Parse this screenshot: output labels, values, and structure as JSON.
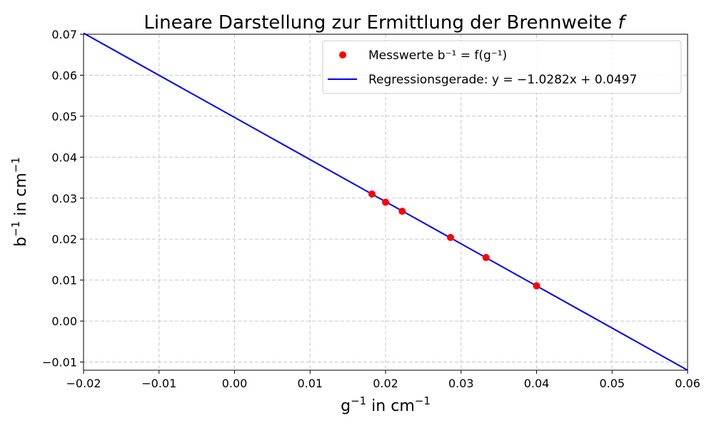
{
  "chart_data": {
    "type": "scatter",
    "title": "Lineare Darstellung zur Ermittlung der Brennweite",
    "title_symbol": "f",
    "xlabel_base": "g",
    "xlabel_sup": "−1",
    "xlabel_rest": " in cm",
    "xlabel_unit_sup": "−1",
    "ylabel_base": "b",
    "ylabel_sup": "−1",
    "ylabel_rest": " in cm",
    "ylabel_unit_sup": "−1",
    "xlim": [
      -0.02,
      0.06
    ],
    "ylim": [
      -0.012,
      0.07
    ],
    "x_ticks": [
      -0.02,
      -0.01,
      0.0,
      0.01,
      0.02,
      0.03,
      0.04,
      0.05,
      0.06
    ],
    "x_tick_labels": [
      "−0.02",
      "−0.01",
      "0.00",
      "0.01",
      "0.02",
      "0.03",
      "0.04",
      "0.05",
      "0.06"
    ],
    "y_ticks": [
      -0.01,
      0.0,
      0.01,
      0.02,
      0.03,
      0.04,
      0.05,
      0.06,
      0.07
    ],
    "y_tick_labels": [
      "−0.01",
      "0.00",
      "0.01",
      "0.02",
      "0.03",
      "0.04",
      "0.05",
      "0.06",
      "0.07"
    ],
    "grid": true,
    "legend_position": "top-right",
    "series": [
      {
        "name": "Messwerte b⁻¹ = f(g⁻¹)",
        "kind": "scatter",
        "color": "#ff0000",
        "x": [
          0.0182,
          0.02,
          0.0222,
          0.0286,
          0.0333,
          0.04
        ],
        "y": [
          0.031,
          0.029,
          0.0268,
          0.0204,
          0.0155,
          0.0086
        ]
      },
      {
        "name": "Regressionsgerade: y = −1.0282x + 0.0497",
        "kind": "line",
        "color": "#0000ff",
        "slope": -1.0282,
        "intercept": 0.0497
      }
    ]
  }
}
